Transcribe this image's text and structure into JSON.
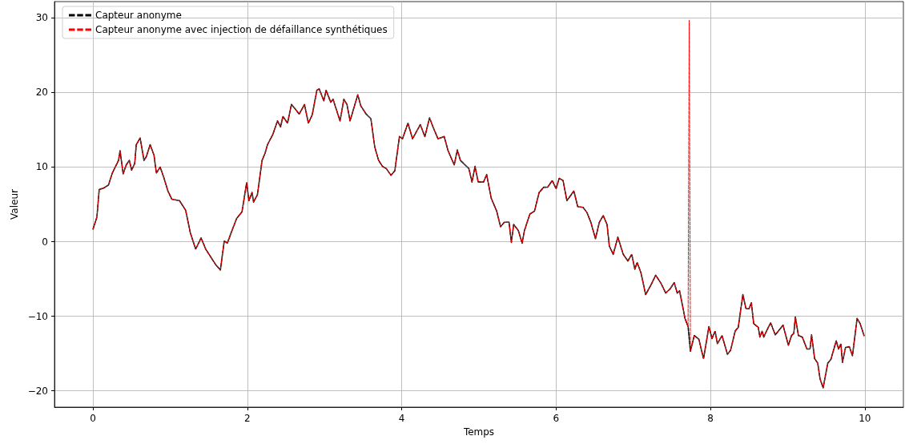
{
  "chart_data": {
    "type": "line",
    "xlabel": "Temps",
    "ylabel": "Valeur",
    "x": [
      0,
      0.05,
      0.08,
      0.14,
      0.2,
      0.25,
      0.33,
      0.35,
      0.39,
      0.43,
      0.47,
      0.5,
      0.54,
      0.56,
      0.61,
      0.66,
      0.69,
      0.74,
      0.79,
      0.82,
      0.87,
      0.92,
      0.97,
      1.02,
      1.12,
      1.2,
      1.26,
      1.33,
      1.4,
      1.46,
      1.54,
      1.59,
      1.65,
      1.7,
      1.74,
      1.79,
      1.86,
      1.93,
      1.99,
      2.02,
      2.06,
      2.08,
      2.13,
      2.19,
      2.23,
      2.26,
      2.33,
      2.39,
      2.43,
      2.46,
      2.52,
      2.57,
      2.62,
      2.67,
      2.74,
      2.79,
      2.84,
      2.9,
      2.93,
      2.99,
      3.02,
      3.08,
      3.11,
      3.2,
      3.25,
      3.29,
      3.33,
      3.37,
      3.43,
      3.47,
      3.54,
      3.6,
      3.65,
      3.7,
      3.75,
      3.8,
      3.86,
      3.91,
      3.97,
      4.01,
      4.08,
      4.14,
      4.24,
      4.3,
      4.36,
      4.42,
      4.47,
      4.55,
      4.6,
      4.68,
      4.72,
      4.76,
      4.87,
      4.91,
      4.95,
      4.99,
      5.06,
      5.1,
      5.16,
      5.23,
      5.28,
      5.33,
      5.39,
      5.42,
      5.45,
      5.51,
      5.56,
      5.59,
      5.66,
      5.72,
      5.78,
      5.84,
      5.89,
      5.95,
      6.0,
      6.04,
      6.09,
      6.14,
      6.23,
      6.28,
      6.35,
      6.4,
      6.45,
      6.51,
      6.56,
      6.61,
      6.66,
      6.69,
      6.74,
      6.8,
      6.87,
      6.93,
      6.98,
      7.02,
      7.05,
      7.1,
      7.16,
      7.23,
      7.29,
      7.36,
      7.42,
      7.48,
      7.53,
      7.57,
      7.6,
      7.67,
      7.71,
      7.725,
      7.74,
      7.79,
      7.85,
      7.91,
      7.98,
      8.02,
      8.06,
      8.09,
      8.15,
      8.22,
      8.26,
      8.32,
      8.36,
      8.42,
      8.46,
      8.5,
      8.53,
      8.56,
      8.62,
      8.64,
      8.67,
      8.69,
      8.74,
      8.78,
      8.84,
      8.88,
      8.94,
      9.01,
      9.05,
      9.08,
      9.1,
      9.14,
      9.19,
      9.25,
      9.29,
      9.31,
      9.35,
      9.39,
      9.42,
      9.46,
      9.52,
      9.56,
      9.63,
      9.66,
      9.69,
      9.71,
      9.75,
      9.8,
      9.84,
      9.9,
      9.94,
      9.99
    ],
    "series": [
      {
        "name": "Capteur anonyme",
        "color": "#000000",
        "values": [
          1.7,
          3.3,
          7.0,
          7.2,
          7.6,
          9.2,
          10.9,
          12.2,
          9.1,
          10.3,
          10.9,
          9.6,
          10.5,
          13.0,
          13.9,
          10.9,
          11.4,
          13.0,
          11.6,
          9.2,
          10.0,
          8.5,
          6.8,
          5.7,
          5.5,
          4.2,
          1.2,
          -1.0,
          0.5,
          -1.0,
          -2.3,
          -3.1,
          -3.8,
          0.1,
          -0.2,
          1.2,
          3.1,
          4.0,
          7.9,
          5.5,
          6.6,
          5.3,
          6.3,
          10.9,
          11.9,
          13.0,
          14.4,
          16.2,
          15.4,
          16.8,
          15.9,
          18.4,
          17.8,
          17.1,
          18.4,
          15.9,
          17.0,
          20.3,
          20.5,
          18.9,
          20.3,
          18.7,
          19.1,
          16.2,
          19.1,
          18.4,
          16.2,
          17.6,
          19.7,
          18.2,
          17.1,
          16.5,
          12.7,
          10.9,
          10.1,
          9.8,
          8.9,
          9.5,
          14.1,
          13.8,
          15.9,
          13.8,
          15.7,
          14.1,
          16.6,
          15.0,
          13.8,
          14.1,
          12.2,
          10.3,
          12.3,
          10.9,
          9.8,
          8.0,
          10.1,
          8.0,
          8.0,
          9.0,
          5.8,
          4.1,
          2.0,
          2.6,
          2.6,
          -0.1,
          2.3,
          1.5,
          -0.2,
          1.5,
          3.7,
          4.1,
          6.6,
          7.3,
          7.3,
          8.2,
          7.1,
          8.5,
          8.2,
          5.5,
          6.8,
          4.7,
          4.6,
          3.9,
          2.6,
          0.4,
          2.6,
          3.5,
          2.3,
          -0.6,
          -1.7,
          0.6,
          -1.7,
          -2.6,
          -1.7,
          -3.7,
          -2.8,
          -4.2,
          -7.1,
          -5.8,
          -4.5,
          -5.6,
          -6.9,
          -6.3,
          -5.5,
          -6.9,
          -6.6,
          -10.3,
          -11.4,
          -13.0,
          -14.7,
          -12.6,
          -13.1,
          -15.7,
          -11.4,
          -13.0,
          -12.0,
          -13.7,
          -12.6,
          -15.1,
          -14.6,
          -12.0,
          -11.5,
          -7.1,
          -9.0,
          -9.0,
          -8.2,
          -11.0,
          -11.5,
          -12.8,
          -12.0,
          -12.8,
          -11.7,
          -10.9,
          -12.5,
          -12.0,
          -11.2,
          -13.9,
          -12.6,
          -12.3,
          -10.1,
          -12.6,
          -12.8,
          -14.4,
          -14.4,
          -12.5,
          -15.7,
          -16.3,
          -18.4,
          -19.6,
          -16.3,
          -15.8,
          -13.3,
          -14.4,
          -13.7,
          -16.2,
          -14.2,
          -14.1,
          -15.3,
          -10.3,
          -11.0,
          -12.6
        ]
      },
      {
        "name": "Capteur anonyme avec injection de défaillance synthétiques",
        "color": "#ff0000",
        "values": [
          1.7,
          3.3,
          7.0,
          7.2,
          7.6,
          9.2,
          10.9,
          12.2,
          9.1,
          10.3,
          10.9,
          9.6,
          10.5,
          13.0,
          13.9,
          10.9,
          11.4,
          13.0,
          11.6,
          9.2,
          10.0,
          8.5,
          6.8,
          5.7,
          5.5,
          4.2,
          1.2,
          -1.0,
          0.5,
          -1.0,
          -2.3,
          -3.1,
          -3.8,
          0.1,
          -0.2,
          1.2,
          3.1,
          4.0,
          7.9,
          5.5,
          6.6,
          5.3,
          6.3,
          10.9,
          11.9,
          13.0,
          14.4,
          16.2,
          15.4,
          16.8,
          15.9,
          18.4,
          17.8,
          17.1,
          18.4,
          15.9,
          17.0,
          20.3,
          20.5,
          18.9,
          20.3,
          18.7,
          19.1,
          16.2,
          19.1,
          18.4,
          16.2,
          17.6,
          19.7,
          18.2,
          17.1,
          16.5,
          12.7,
          10.9,
          10.1,
          9.8,
          8.9,
          9.5,
          14.1,
          13.8,
          15.9,
          13.8,
          15.7,
          14.1,
          16.6,
          15.0,
          13.8,
          14.1,
          12.2,
          10.3,
          12.3,
          10.9,
          9.8,
          8.0,
          10.1,
          8.0,
          8.0,
          9.0,
          5.8,
          4.1,
          2.0,
          2.6,
          2.6,
          -0.1,
          2.3,
          1.5,
          -0.2,
          1.5,
          3.7,
          4.1,
          6.6,
          7.3,
          7.3,
          8.2,
          7.1,
          8.5,
          8.2,
          5.5,
          6.8,
          4.7,
          4.6,
          3.9,
          2.6,
          0.4,
          2.6,
          3.5,
          2.3,
          -0.6,
          -1.7,
          0.6,
          -1.7,
          -2.6,
          -1.7,
          -3.7,
          -2.8,
          -4.2,
          -7.1,
          -5.8,
          -4.5,
          -5.6,
          -6.9,
          -6.3,
          -5.5,
          -6.9,
          -6.6,
          -10.3,
          -11.4,
          29.7,
          -14.7,
          -12.6,
          -13.1,
          -15.7,
          -11.4,
          -13.0,
          -12.0,
          -13.7,
          -12.6,
          -15.1,
          -14.6,
          -12.0,
          -11.5,
          -7.1,
          -9.0,
          -9.0,
          -8.2,
          -11.0,
          -11.5,
          -12.8,
          -12.0,
          -12.8,
          -11.7,
          -10.9,
          -12.5,
          -12.0,
          -11.2,
          -13.9,
          -12.6,
          -12.3,
          -10.1,
          -12.6,
          -12.8,
          -14.4,
          -14.4,
          -12.5,
          -15.7,
          -16.3,
          -18.4,
          -19.6,
          -16.3,
          -15.8,
          -13.3,
          -14.4,
          -13.7,
          -16.2,
          -14.2,
          -14.1,
          -15.3,
          -10.3,
          -11.0,
          -12.6
        ]
      }
    ],
    "xlim": [
      -0.5,
      10.5
    ],
    "xticks": [
      0,
      2,
      4,
      6,
      8,
      10
    ],
    "ylim": [
      -22.2,
      32.2
    ],
    "yticks": [
      -20,
      -10,
      0,
      10,
      20,
      30
    ],
    "grid": true,
    "legend": "top left",
    "marker": "none",
    "line_style": "dashed"
  }
}
